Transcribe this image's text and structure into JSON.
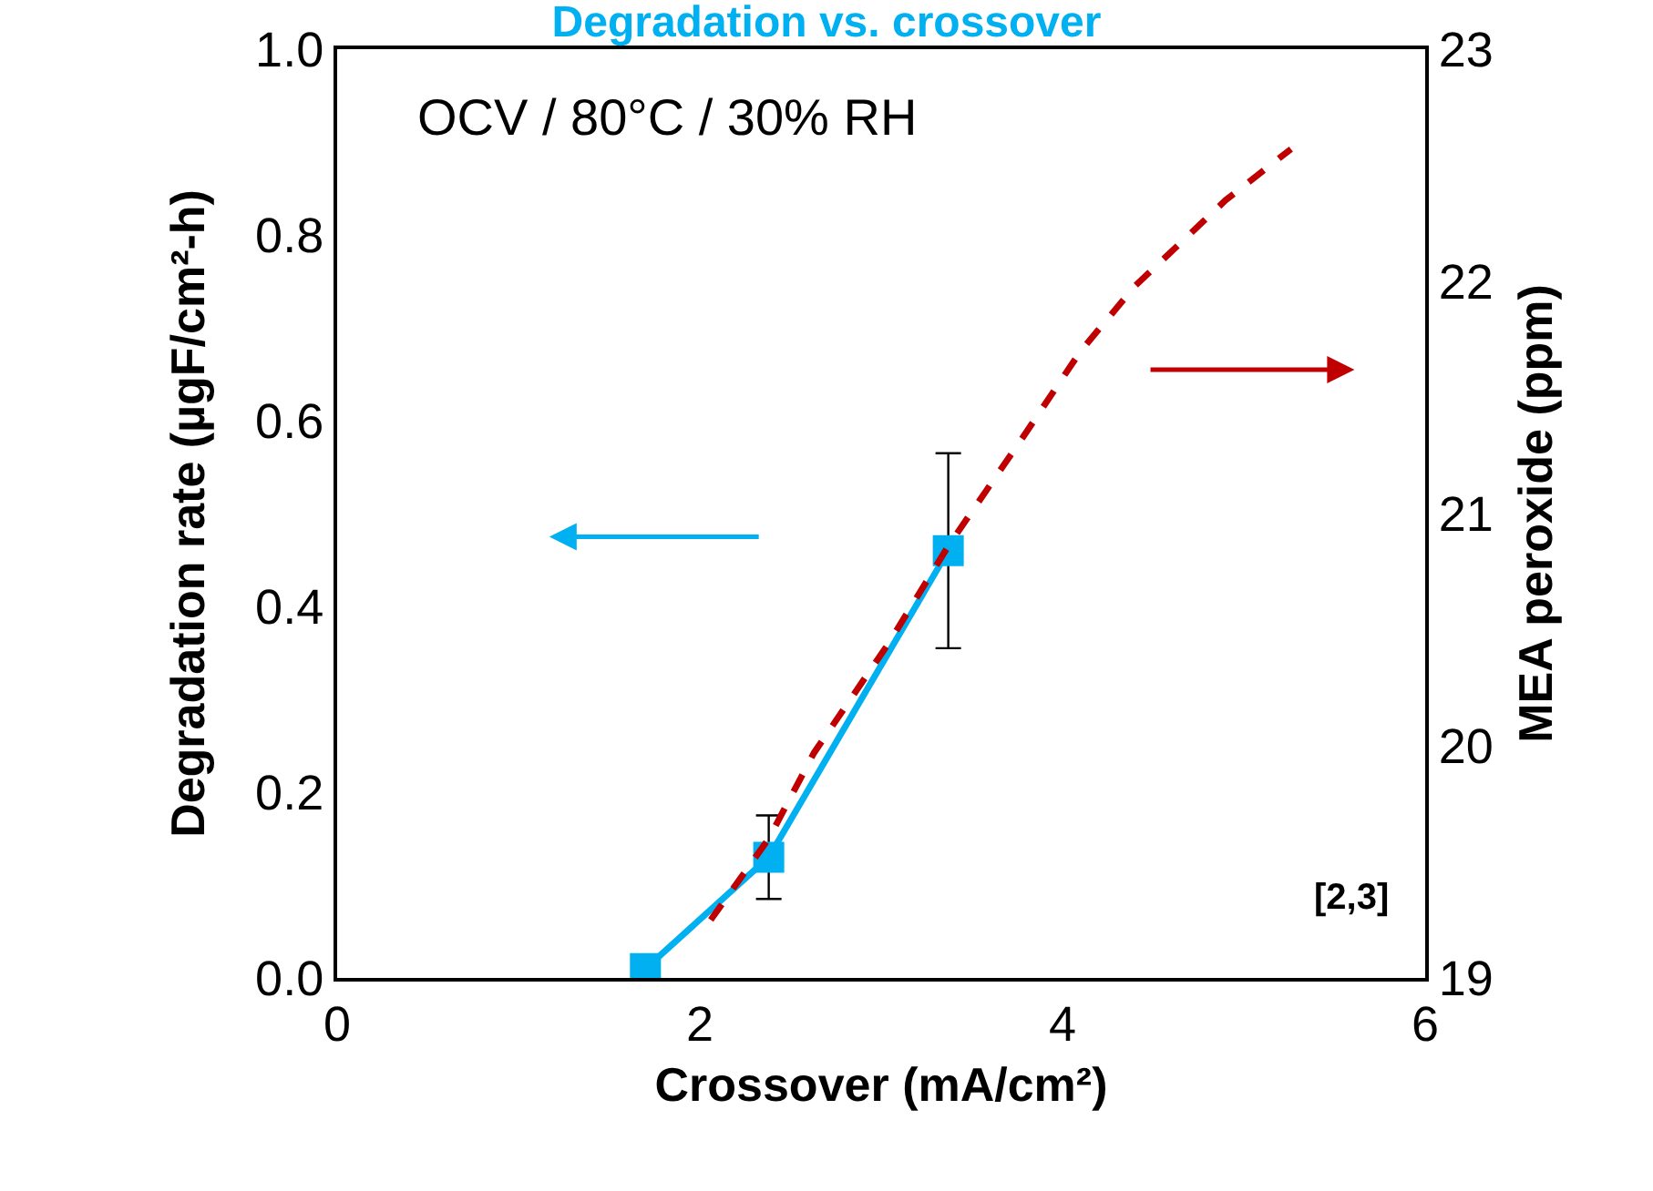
{
  "chart_data": {
    "type": "line",
    "title": "Degradation vs. crossover",
    "xlabel": "Crossover (mA/cm²)",
    "ylabel": "Degradation rate (µgF/cm²-h)",
    "y2label": "MEA peroxide (ppm)",
    "xlim": [
      0,
      6
    ],
    "xticks": [
      0,
      2,
      4,
      6
    ],
    "ylim": [
      0,
      1
    ],
    "yticks": [
      {
        "value": 0,
        "label": "0.0"
      },
      {
        "value": 0.2,
        "label": "0.2"
      },
      {
        "value": 0.4,
        "label": "0.4"
      },
      {
        "value": 0.6,
        "label": "0.6"
      },
      {
        "value": 0.8,
        "label": "0.8"
      },
      {
        "value": 1,
        "label": "1.0"
      }
    ],
    "y2lim": [
      19,
      23
    ],
    "y2ticks": [
      19,
      20,
      21,
      22,
      23
    ],
    "grid": false,
    "series": [
      {
        "color": "#00b0f0",
        "marker": "square",
        "line_style": "solid",
        "x": [
          1.7,
          2.38,
          3.37
        ],
        "values": [
          0.01,
          0.13,
          0.46
        ],
        "errors": [
          null,
          0.045,
          0.105
        ]
      },
      {
        "color": "#c00000",
        "marker": "none",
        "line_style": "dashed",
        "axis": "y2",
        "x": [
          2.06,
          2.38,
          2.63,
          3.04,
          3.37,
          3.8,
          4.1,
          4.4,
          4.9,
          5.26
        ],
        "values": [
          19.25,
          19.6,
          19.97,
          20.44,
          20.86,
          21.35,
          21.7,
          21.98,
          22.35,
          22.57
        ]
      }
    ],
    "annotations": [
      "OCV / 80°C / 30% RH",
      "[2,3]"
    ]
  }
}
